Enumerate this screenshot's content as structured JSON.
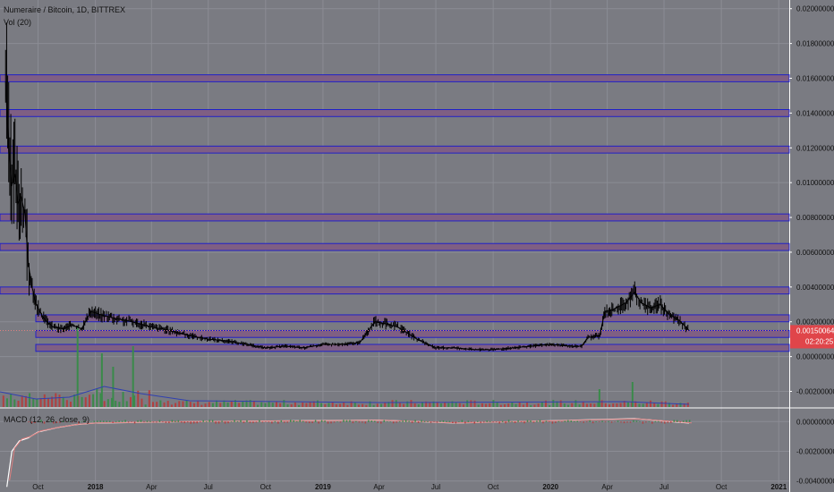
{
  "legend": {
    "symbol": "Numeraire / Bitcoin, 1D, BITTREX",
    "volume": "Vol (20)",
    "macd": "MACD (12, 26, close, 9)"
  },
  "price_badge": {
    "value": "0.00150064",
    "countdown": "02:20:25",
    "color": "#e0454a"
  },
  "colors": {
    "background": "#7a7b82",
    "grid": "#8b8c94",
    "zone_fill": "#7f5f83",
    "zone_border": "#2020c8",
    "candle": "#000000",
    "volume_up": "#3a8a4a",
    "volume_down": "#b04040",
    "volume_ma": "#3040b0",
    "macd_line": "#ffffff",
    "signal_line": "#e08080"
  },
  "chart_data": [
    {
      "type": "line",
      "name": "price",
      "title": "Numeraire / Bitcoin, 1D, BITTREX",
      "x_ticks": [
        "Oct",
        "2018",
        "Apr",
        "Jul",
        "Oct",
        "2019",
        "Apr",
        "Jul",
        "Oct",
        "2020",
        "Apr",
        "Jul",
        "Oct",
        "2021"
      ],
      "y_ticks": [
        "0.02000000",
        "0.01800000",
        "0.01600000",
        "0.01400000",
        "0.01200000",
        "0.01000000",
        "0.00800000",
        "0.00600000",
        "0.00400000",
        "0.00200000",
        "0.00000000",
        "-0.00200000"
      ],
      "ylim": [
        -0.0029,
        0.0205
      ],
      "x_range": [
        "2017-08-01",
        "2021-01-15"
      ],
      "series": [
        {
          "values": [
            {
              "x": "2017-08-10",
              "y": 0.0158
            },
            {
              "x": "2017-08-15",
              "y": 0.0118
            },
            {
              "x": "2017-08-20",
              "y": 0.0098
            },
            {
              "x": "2017-08-25",
              "y": 0.0105
            },
            {
              "x": "2017-08-30",
              "y": 0.0088
            },
            {
              "x": "2017-09-04",
              "y": 0.0092
            },
            {
              "x": "2017-09-10",
              "y": 0.0082
            },
            {
              "x": "2017-09-15",
              "y": 0.0055
            },
            {
              "x": "2017-09-20",
              "y": 0.0042
            },
            {
              "x": "2017-09-28",
              "y": 0.003
            },
            {
              "x": "2017-10-10",
              "y": 0.0022
            },
            {
              "x": "2017-10-25",
              "y": 0.0017
            },
            {
              "x": "2017-11-10",
              "y": 0.0016
            },
            {
              "x": "2017-11-25",
              "y": 0.0018
            },
            {
              "x": "2017-12-10",
              "y": 0.0016
            },
            {
              "x": "2017-12-25",
              "y": 0.0026
            },
            {
              "x": "2018-01-10",
              "y": 0.0024
            },
            {
              "x": "2018-02-01",
              "y": 0.0022
            },
            {
              "x": "2018-03-01",
              "y": 0.002
            },
            {
              "x": "2018-04-01",
              "y": 0.0017
            },
            {
              "x": "2018-05-01",
              "y": 0.0015
            },
            {
              "x": "2018-06-01",
              "y": 0.0012
            },
            {
              "x": "2018-07-01",
              "y": 0.001
            },
            {
              "x": "2018-08-01",
              "y": 0.0009
            },
            {
              "x": "2018-09-01",
              "y": 0.0007
            },
            {
              "x": "2018-10-01",
              "y": 0.0005
            },
            {
              "x": "2018-11-01",
              "y": 0.0006
            },
            {
              "x": "2018-12-01",
              "y": 0.0005
            },
            {
              "x": "2019-01-01",
              "y": 0.0007
            },
            {
              "x": "2019-02-01",
              "y": 0.0007
            },
            {
              "x": "2019-03-01",
              "y": 0.0008
            },
            {
              "x": "2019-03-25",
              "y": 0.002
            },
            {
              "x": "2019-04-10",
              "y": 0.0019
            },
            {
              "x": "2019-05-01",
              "y": 0.0017
            },
            {
              "x": "2019-06-01",
              "y": 0.001
            },
            {
              "x": "2019-07-01",
              "y": 0.0005
            },
            {
              "x": "2019-08-01",
              "y": 0.0005
            },
            {
              "x": "2019-09-01",
              "y": 0.0004
            },
            {
              "x": "2019-10-01",
              "y": 0.0004
            },
            {
              "x": "2019-11-01",
              "y": 0.0005
            },
            {
              "x": "2019-12-01",
              "y": 0.0006
            },
            {
              "x": "2020-01-01",
              "y": 0.0007
            },
            {
              "x": "2020-02-01",
              "y": 0.0006
            },
            {
              "x": "2020-02-20",
              "y": 0.0006
            },
            {
              "x": "2020-03-01",
              "y": 0.0011
            },
            {
              "x": "2020-03-20",
              "y": 0.0012
            },
            {
              "x": "2020-03-28",
              "y": 0.0026
            },
            {
              "x": "2020-04-10",
              "y": 0.0027
            },
            {
              "x": "2020-05-01",
              "y": 0.0031
            },
            {
              "x": "2020-05-15",
              "y": 0.0037
            },
            {
              "x": "2020-05-25",
              "y": 0.0031
            },
            {
              "x": "2020-06-10",
              "y": 0.0028
            },
            {
              "x": "2020-06-25",
              "y": 0.003
            },
            {
              "x": "2020-07-10",
              "y": 0.0024
            },
            {
              "x": "2020-07-25",
              "y": 0.0021
            },
            {
              "x": "2020-08-05",
              "y": 0.0017
            },
            {
              "x": "2020-08-10",
              "y": 0.0015
            }
          ]
        }
      ],
      "annotations": [
        {
          "type": "zone",
          "from": 0.0158,
          "to": 0.0162
        },
        {
          "type": "zone",
          "from": 0.0138,
          "to": 0.0142
        },
        {
          "type": "zone",
          "from": 0.0117,
          "to": 0.0121
        },
        {
          "type": "zone",
          "from": 0.0078,
          "to": 0.0082
        },
        {
          "type": "zone",
          "from": 0.0061,
          "to": 0.0065
        },
        {
          "type": "zone",
          "from": 0.0036,
          "to": 0.004
        },
        {
          "type": "zone",
          "from": 0.002,
          "to": 0.0024
        },
        {
          "type": "zone",
          "from": 0.0011,
          "to": 0.0015
        },
        {
          "type": "zone",
          "from": 0.0003,
          "to": 0.0007
        }
      ],
      "grid": true
    },
    {
      "type": "bar",
      "name": "volume",
      "title": "Vol (20)",
      "note": "volume histogram with moving average (20)"
    },
    {
      "type": "line",
      "name": "macd",
      "title": "MACD (12, 26, close, 9)",
      "y_ticks": [
        "0.00000000",
        "-0.00200000",
        "-0.00400000"
      ],
      "ylim": [
        -0.0045,
        0.0005
      ],
      "series": [
        {
          "values": [
            {
              "x": "2017-08-12",
              "y": -0.0044
            },
            {
              "x": "2017-08-20",
              "y": -0.002
            },
            {
              "x": "2017-09-01",
              "y": -0.0013
            },
            {
              "x": "2017-09-15",
              "y": -0.0011
            },
            {
              "x": "2017-10-01",
              "y": -0.0007
            },
            {
              "x": "2017-11-01",
              "y": -0.0004
            },
            {
              "x": "2017-12-01",
              "y": -0.0002
            },
            {
              "x": "2018-01-01",
              "y": -0.0001
            },
            {
              "x": "2018-06-01",
              "y": 0.0
            },
            {
              "x": "2019-04-01",
              "y": 0.0001
            },
            {
              "x": "2019-08-01",
              "y": -0.0001
            },
            {
              "x": "2020-05-15",
              "y": 0.0002
            },
            {
              "x": "2020-08-10",
              "y": -0.0001
            }
          ]
        }
      ]
    }
  ]
}
